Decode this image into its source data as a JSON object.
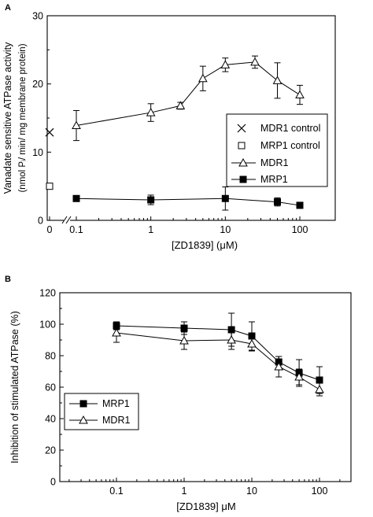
{
  "panels": [
    {
      "label": "A"
    },
    {
      "label": "B"
    }
  ],
  "chart_data": [
    {
      "type": "line",
      "panel_label": "A",
      "xlabel": "[ZD1839] (μM)",
      "ylabel_line1": "Vanadate sensitive ATPase activity",
      "ylabel_line2": "(nmol Pᵢ/ min/ mg membrane protein)",
      "xscale": "log",
      "ylim": [
        0,
        30
      ],
      "yticks": [
        "0",
        "10",
        "20",
        "30"
      ],
      "xtick_labels": [
        "0",
        "0.1",
        "1",
        "10",
        "100"
      ],
      "legend_position": "right",
      "controls": [
        {
          "name": "MDR1 control",
          "marker": "x",
          "x": 0,
          "y": 12.9
        },
        {
          "name": "MRP1 control",
          "marker": "square-open",
          "x": 0,
          "y": 5.0
        }
      ],
      "series": [
        {
          "name": "MDR1",
          "marker": "triangle-open",
          "x": [
            0.1,
            1,
            2.5,
            5,
            10,
            25,
            50,
            100
          ],
          "y": [
            13.9,
            15.8,
            16.8,
            20.8,
            22.8,
            23.2,
            20.5,
            18.4
          ],
          "err": [
            2.2,
            1.3,
            0.5,
            1.8,
            1.0,
            0.9,
            2.6,
            1.4
          ]
        },
        {
          "name": "MRP1",
          "marker": "square-filled",
          "x": [
            0.1,
            1,
            10,
            50,
            100
          ],
          "y": [
            3.2,
            3.0,
            3.2,
            2.7,
            2.2
          ],
          "err": [
            0.3,
            0.7,
            1.7,
            0.6,
            0.4
          ]
        }
      ]
    },
    {
      "type": "line",
      "panel_label": "B",
      "xlabel": "[ZD1839] μM",
      "ylabel": "Inhibition of stimulated ATPase (%)",
      "xscale": "log",
      "xlim": [
        0.01,
        200
      ],
      "ylim": [
        0,
        120
      ],
      "yticks": [
        "0",
        "20",
        "40",
        "60",
        "80",
        "100",
        "120"
      ],
      "xtick_labels": [
        "0.1",
        "1",
        "10",
        "100"
      ],
      "legend_position": "lower-left",
      "series": [
        {
          "name": "MRP1",
          "marker": "square-filled",
          "x": [
            0.1,
            1,
            5,
            10,
            25,
            50,
            100
          ],
          "y": [
            99.0,
            97.5,
            96.5,
            92.5,
            76.0,
            69.0,
            64.5
          ],
          "err": [
            2.5,
            4.0,
            10.5,
            9.0,
            3.5,
            8.5,
            8.5
          ]
        },
        {
          "name": "MDR1",
          "marker": "triangle-open",
          "x": [
            0.1,
            1,
            5,
            10,
            25,
            50,
            100
          ],
          "y": [
            94.5,
            89.5,
            90.0,
            87.5,
            73.0,
            66.5,
            58.5
          ],
          "err": [
            6.0,
            5.5,
            6.0,
            4.5,
            6.5,
            5.0,
            4.0
          ]
        }
      ]
    }
  ]
}
